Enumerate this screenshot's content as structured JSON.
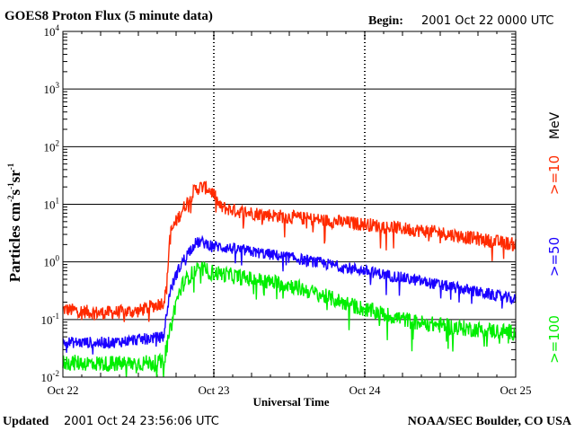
{
  "header": {
    "title": "GOES8 Proton Flux (5 minute data)",
    "begin_label": "Begin:",
    "begin_value": "2001 Oct 22 0000 UTC"
  },
  "footer": {
    "updated_label": "Updated",
    "updated_value": "2001 Oct 24 23:56:06 UTC",
    "credit": "NOAA/SEC Boulder, CO USA"
  },
  "axes": {
    "ylabel_main": "Particles cm",
    "ylabel_exp1": "-2",
    "ylabel_s": "s",
    "ylabel_exp2": "-1",
    "ylabel_sr": "sr",
    "ylabel_exp3": "-1",
    "xlabel": "Universal Time",
    "ytick_base": "10",
    "yticks": [
      {
        "exp": "4",
        "value": 10000
      },
      {
        "exp": "3",
        "value": 1000
      },
      {
        "exp": "2",
        "value": 100
      },
      {
        "exp": "1",
        "value": 10
      },
      {
        "exp": "0",
        "value": 1
      },
      {
        "exp": "-1",
        "value": 0.1
      },
      {
        "exp": "-2",
        "value": 0.01
      }
    ],
    "xticks": [
      {
        "label": "Oct 22",
        "day": 0
      },
      {
        "label": "Oct 23",
        "day": 1
      },
      {
        "label": "Oct 24",
        "day": 2
      },
      {
        "label": "Oct 25",
        "day": 3
      }
    ]
  },
  "legend": {
    "unit": "MeV",
    "entries": [
      {
        "label": ">=10",
        "color": "#ff2a00"
      },
      {
        "label": ">=50",
        "color": "#1a00ff"
      },
      {
        "label": ">=100",
        "color": "#00ee00"
      }
    ]
  },
  "chart_data": {
    "type": "line",
    "title": "GOES8 Proton Flux (5 minute data)",
    "xlabel": "Universal Time",
    "ylabel": "Particles cm-2s-1sr-1",
    "yscale": "log",
    "ylim": [
      0.01,
      10000
    ],
    "xlim": [
      "2001-10-22 00:00",
      "2001-10-25 00:00"
    ],
    "grid": true,
    "legend_placement": "right",
    "series": [
      {
        "name": ">=10 MeV",
        "color": "#ff2a00",
        "noise": 0.12,
        "points": [
          [
            "2001-10-22 00:00",
            0.15
          ],
          [
            "2001-10-22 06:00",
            0.13
          ],
          [
            "2001-10-22 12:00",
            0.14
          ],
          [
            "2001-10-22 16:00",
            0.2
          ],
          [
            "2001-10-22 16:30",
            0.35
          ],
          [
            "2001-10-22 17:00",
            3.0
          ],
          [
            "2001-10-22 18:00",
            5.0
          ],
          [
            "2001-10-22 19:00",
            8.0
          ],
          [
            "2001-10-22 20:00",
            12.0
          ],
          [
            "2001-10-22 21:00",
            18.0
          ],
          [
            "2001-10-22 22:00",
            20.0
          ],
          [
            "2001-10-22 23:00",
            19.0
          ],
          [
            "2001-10-23 00:00",
            15.0
          ],
          [
            "2001-10-23 01:00",
            9.0
          ],
          [
            "2001-10-23 04:00",
            7.5
          ],
          [
            "2001-10-23 12:00",
            6.0
          ],
          [
            "2001-10-24 00:00",
            4.5
          ],
          [
            "2001-10-24 12:00",
            3.2
          ],
          [
            "2001-10-24 18:00",
            2.5
          ],
          [
            "2001-10-25 00:00",
            2.0
          ]
        ]
      },
      {
        "name": ">=50 MeV",
        "color": "#1a00ff",
        "noise": 0.1,
        "points": [
          [
            "2001-10-22 00:00",
            0.04
          ],
          [
            "2001-10-22 08:00",
            0.04
          ],
          [
            "2001-10-22 16:00",
            0.05
          ],
          [
            "2001-10-22 17:00",
            0.3
          ],
          [
            "2001-10-22 18:00",
            0.6
          ],
          [
            "2001-10-22 19:00",
            1.0
          ],
          [
            "2001-10-22 20:00",
            1.5
          ],
          [
            "2001-10-22 21:00",
            2.1
          ],
          [
            "2001-10-22 22:00",
            2.2
          ],
          [
            "2001-10-23 00:00",
            1.9
          ],
          [
            "2001-10-23 06:00",
            1.5
          ],
          [
            "2001-10-23 12:00",
            1.2
          ],
          [
            "2001-10-24 00:00",
            0.7
          ],
          [
            "2001-10-24 12:00",
            0.4
          ],
          [
            "2001-10-24 18:00",
            0.3
          ],
          [
            "2001-10-25 00:00",
            0.22
          ]
        ]
      },
      {
        "name": ">=100 MeV",
        "color": "#00ee00",
        "noise": 0.14,
        "points": [
          [
            "2001-10-22 00:00",
            0.018
          ],
          [
            "2001-10-22 08:00",
            0.017
          ],
          [
            "2001-10-22 16:00",
            0.018
          ],
          [
            "2001-10-22 17:00",
            0.06
          ],
          [
            "2001-10-22 18:00",
            0.2
          ],
          [
            "2001-10-22 19:00",
            0.4
          ],
          [
            "2001-10-22 20:00",
            0.55
          ],
          [
            "2001-10-22 21:00",
            0.7
          ],
          [
            "2001-10-22 22:00",
            0.75
          ],
          [
            "2001-10-23 00:00",
            0.65
          ],
          [
            "2001-10-23 06:00",
            0.5
          ],
          [
            "2001-10-23 12:00",
            0.4
          ],
          [
            "2001-10-24 00:00",
            0.15
          ],
          [
            "2001-10-24 08:00",
            0.09
          ],
          [
            "2001-10-24 16:00",
            0.07
          ],
          [
            "2001-10-25 00:00",
            0.06
          ]
        ]
      }
    ]
  }
}
